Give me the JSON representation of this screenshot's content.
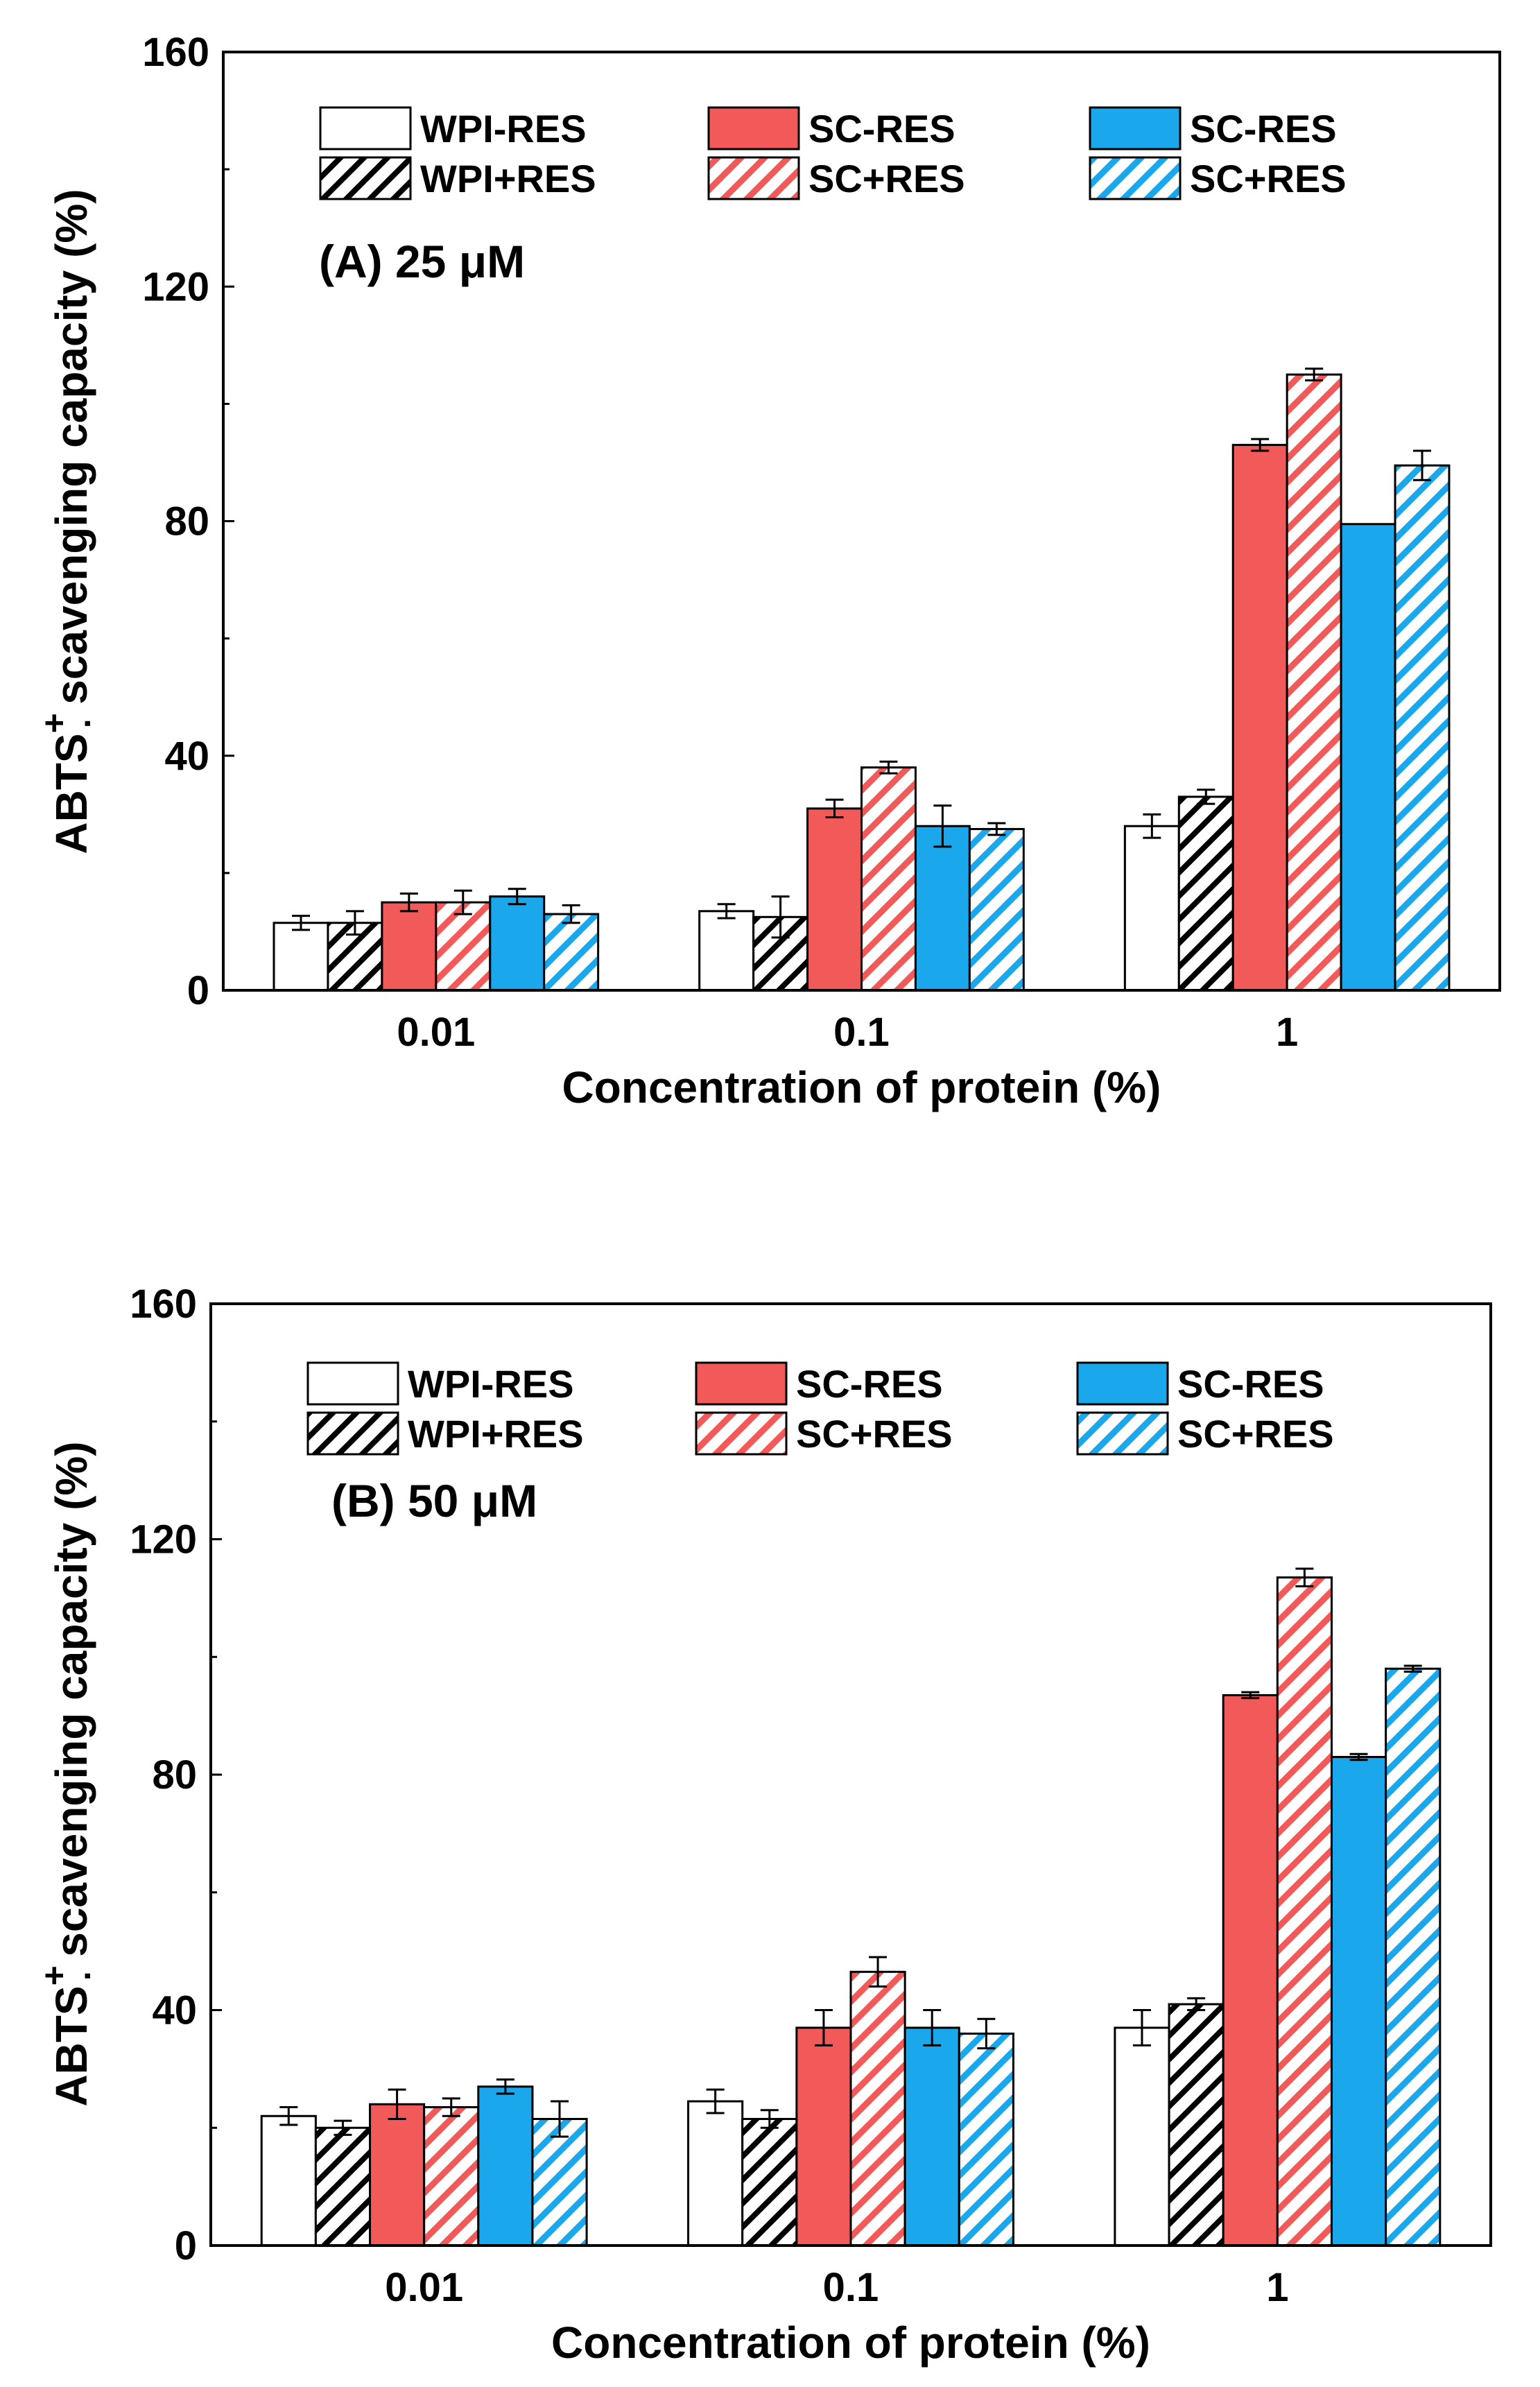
{
  "colors": {
    "white": "#ffffff",
    "red": "#f25a5a",
    "blue": "#1aa7ec",
    "black": "#000000"
  },
  "chart_data": [
    {
      "type": "bar",
      "panel_label": "(A) 25 μM",
      "xlabel": "Concentration of protein (%)",
      "ylabel_prefix": "ABTS",
      "ylabel_superscript": "+",
      "ylabel_dot": "·",
      "ylabel_suffix": " scavenging capacity (%)",
      "ylim": [
        0,
        160
      ],
      "yticks": [
        "0",
        "40",
        "80",
        "120",
        "160"
      ],
      "categories": [
        "0.01",
        "0.1",
        "1"
      ],
      "legend_position": "top",
      "series": [
        {
          "name": "WPI-RES",
          "fill": "white",
          "hatch": false,
          "values": [
            11.5,
            13.5,
            28
          ],
          "errors": [
            1.2,
            1.2,
            2
          ]
        },
        {
          "name": "WPI+RES",
          "fill": "white",
          "hatch": true,
          "values": [
            11.5,
            12.5,
            33
          ],
          "errors": [
            2,
            3.5,
            1.2
          ]
        },
        {
          "name": "SC-RES",
          "fill": "red",
          "hatch": false,
          "values": [
            15,
            31,
            93
          ],
          "errors": [
            1.5,
            1.5,
            1
          ]
        },
        {
          "name": "SC+RES",
          "fill": "red",
          "hatch": true,
          "values": [
            15,
            38,
            105
          ],
          "errors": [
            2,
            1,
            1
          ]
        },
        {
          "name": "SC-RES",
          "fill": "blue",
          "hatch": false,
          "values": [
            16,
            28,
            79.5
          ],
          "errors": [
            1.3,
            3.5,
            0
          ]
        },
        {
          "name": "SC+RES",
          "fill": "blue",
          "hatch": true,
          "values": [
            13,
            27.5,
            89.5
          ],
          "errors": [
            1.5,
            1,
            2.5
          ]
        }
      ]
    },
    {
      "type": "bar",
      "panel_label": "(B) 50 μM",
      "xlabel": "Concentration of protein (%)",
      "ylabel_prefix": "ABTS",
      "ylabel_superscript": "+",
      "ylabel_dot": "·",
      "ylabel_suffix": " scavenging capacity (%)",
      "ylim": [
        0,
        160
      ],
      "yticks": [
        "0",
        "40",
        "80",
        "120",
        "160"
      ],
      "categories": [
        "0.01",
        "0.1",
        "1"
      ],
      "legend_position": "top",
      "series": [
        {
          "name": "WPI-RES",
          "fill": "white",
          "hatch": false,
          "values": [
            22,
            24.5,
            37
          ],
          "errors": [
            1.5,
            2,
            3
          ]
        },
        {
          "name": "WPI+RES",
          "fill": "white",
          "hatch": true,
          "values": [
            20,
            21.5,
            41
          ],
          "errors": [
            1.2,
            1.5,
            1
          ]
        },
        {
          "name": "SC-RES",
          "fill": "red",
          "hatch": false,
          "values": [
            24,
            37,
            93.5
          ],
          "errors": [
            2.5,
            3,
            0.5
          ]
        },
        {
          "name": "SC+RES",
          "fill": "red",
          "hatch": true,
          "values": [
            23.5,
            46.5,
            113.5
          ],
          "errors": [
            1.5,
            2.5,
            1.5
          ]
        },
        {
          "name": "SC-RES",
          "fill": "blue",
          "hatch": false,
          "values": [
            27,
            37,
            83
          ],
          "errors": [
            1.2,
            3,
            0.5
          ]
        },
        {
          "name": "SC+RES",
          "fill": "blue",
          "hatch": true,
          "values": [
            21.5,
            36,
            98
          ],
          "errors": [
            3,
            2.5,
            0.5
          ]
        }
      ]
    }
  ]
}
